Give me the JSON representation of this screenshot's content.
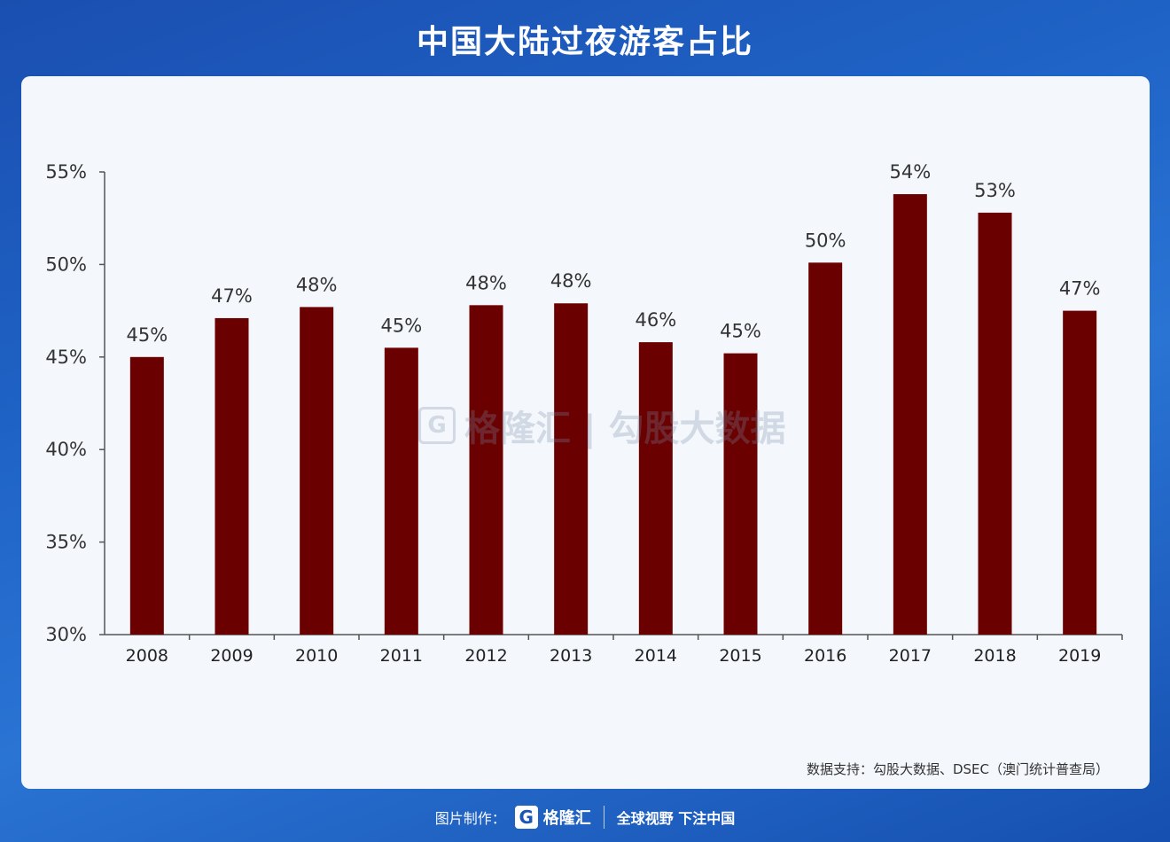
{
  "title": "中国大陆过夜游客占比",
  "source": "数据支持：勾股大数据、DSEC（澳门统计普查局）",
  "footer": {
    "made_by": "图片制作：",
    "logo_letter": "G",
    "brand": "格隆汇",
    "slogan": "全球视野 下注中国"
  },
  "watermark": {
    "letter": "G",
    "text": "格隆汇 | 勾股大数据"
  },
  "colors": {
    "bar": "#6b0000",
    "background": "#1f63c6",
    "card": "#f4f7fb"
  },
  "chart_data": {
    "type": "bar",
    "categories": [
      "2008",
      "2009",
      "2010",
      "2011",
      "2012",
      "2013",
      "2014",
      "2015",
      "2016",
      "2017",
      "2018",
      "2019"
    ],
    "values": [
      45.0,
      47.1,
      47.7,
      45.5,
      47.8,
      47.9,
      45.8,
      45.2,
      50.1,
      53.8,
      52.8,
      47.5
    ],
    "data_labels": [
      "45%",
      "47%",
      "48%",
      "45%",
      "48%",
      "48%",
      "46%",
      "45%",
      "50%",
      "54%",
      "53%",
      "47%"
    ],
    "ylim": [
      30,
      55
    ],
    "yticks": [
      30,
      35,
      40,
      45,
      50,
      55
    ],
    "ytick_labels": [
      "30%",
      "35%",
      "40%",
      "45%",
      "50%",
      "55%"
    ],
    "grid": false,
    "legend": "none"
  }
}
